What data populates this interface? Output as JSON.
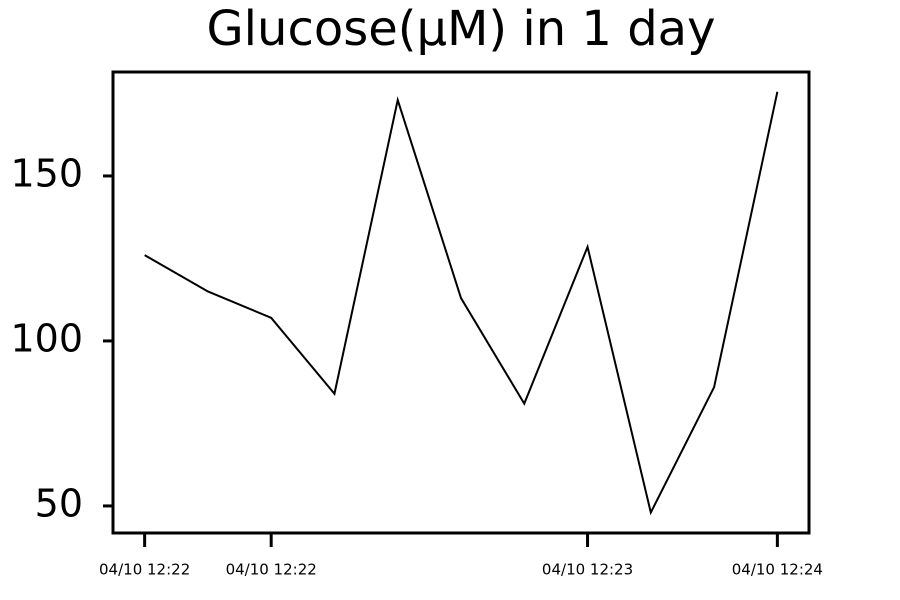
{
  "chart_data": {
    "type": "line",
    "title": "Glucose(µM) in 1 day",
    "x": [
      0,
      1,
      2,
      3,
      4,
      5,
      6,
      7,
      8,
      9,
      10
    ],
    "series": [
      {
        "name": "Glucose",
        "color": "#000000",
        "values": [
          126,
          115,
          107,
          84,
          173,
          113,
          81,
          128.5,
          48,
          86,
          175.5
        ]
      }
    ],
    "xlim": [
      -0.5,
      10.5
    ],
    "xticks": [
      {
        "value": 0,
        "label": "04/10 12:22"
      },
      {
        "value": 2,
        "label": "04/10 12:22"
      },
      {
        "value": 7,
        "label": "04/10 12:23"
      },
      {
        "value": 10,
        "label": "04/10 12:24"
      }
    ],
    "ylim": [
      41.8,
      181.5
    ],
    "yticks": [
      50,
      100,
      150
    ],
    "grid": false
  }
}
